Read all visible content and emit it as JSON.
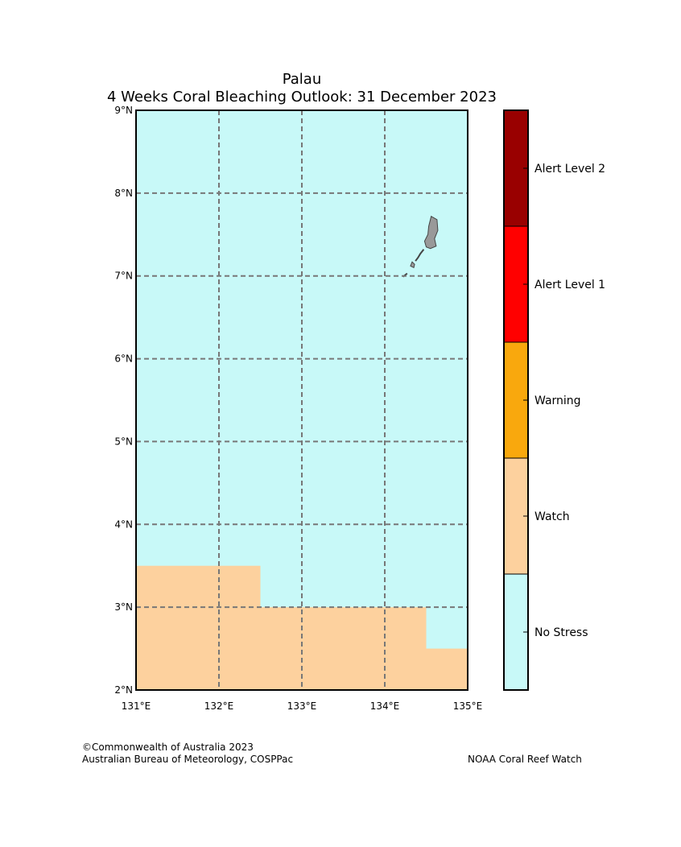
{
  "title": {
    "line1": "Palau",
    "line2": "4 Weeks Coral Bleaching Outlook: 31 December 2023"
  },
  "map": {
    "lon_range": [
      131,
      135
    ],
    "lat_range": [
      2,
      9
    ],
    "lat_ticks": [
      {
        "value": 9,
        "label": "9°N"
      },
      {
        "value": 8,
        "label": "8°N"
      },
      {
        "value": 7,
        "label": "7°N"
      },
      {
        "value": 6,
        "label": "6°N"
      },
      {
        "value": 5,
        "label": "5°N"
      },
      {
        "value": 4,
        "label": "4°N"
      },
      {
        "value": 3,
        "label": "3°N"
      },
      {
        "value": 2,
        "label": "2°N"
      }
    ],
    "lon_ticks": [
      {
        "value": 131,
        "label": "131°E"
      },
      {
        "value": 132,
        "label": "132°E"
      },
      {
        "value": 133,
        "label": "133°E"
      },
      {
        "value": 134,
        "label": "134°E"
      },
      {
        "value": 135,
        "label": "135°E"
      }
    ],
    "background_category": "No Stress",
    "regions": [
      {
        "category": "Watch",
        "lon": [
          131,
          132.5
        ],
        "lat": [
          2,
          3.5
        ]
      },
      {
        "category": "Watch",
        "lon": [
          132.5,
          134.5
        ],
        "lat": [
          2,
          3
        ]
      },
      {
        "category": "Watch",
        "lon": [
          134.5,
          135
        ],
        "lat": [
          2,
          2.5
        ]
      }
    ],
    "land_name": "Palau islands",
    "colors": {
      "land": "#999999",
      "grid": "#777777"
    }
  },
  "legend": {
    "categories": [
      {
        "label": "Alert Level 2",
        "color": "#990000"
      },
      {
        "label": "Alert Level 1",
        "color": "#ff0000"
      },
      {
        "label": "Warning",
        "color": "#f9a80d"
      },
      {
        "label": "Watch",
        "color": "#fdd19e"
      },
      {
        "label": "No Stress",
        "color": "#c8f9f8"
      }
    ]
  },
  "credits": {
    "left_line1": "©Commonwealth of Australia 2023",
    "left_line2": "Australian Bureau of Meteorology, COSPPac",
    "right": "NOAA Coral Reef Watch"
  }
}
